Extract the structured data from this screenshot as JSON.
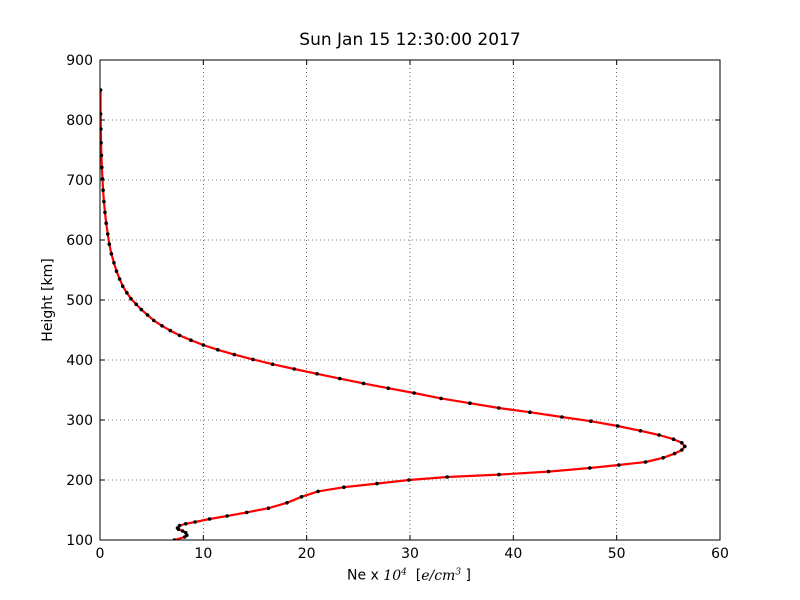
{
  "chart_data": {
    "type": "line",
    "title": "Sun Jan 15 12:30:00 2017",
    "xlabel": "Ne x",
    "xlabel_math": "10",
    "xlabel_exp": "4",
    "xlabel_unit_open": "[",
    "xlabel_unit": "e/cm",
    "xlabel_unit_exp": "3",
    "xlabel_unit_close": "]",
    "ylabel": "Height [km]",
    "xlim": [
      0,
      60
    ],
    "ylim": [
      100,
      900
    ],
    "xticks": [
      0,
      10,
      20,
      30,
      40,
      50,
      60
    ],
    "yticks": [
      100,
      200,
      300,
      400,
      500,
      600,
      700,
      800,
      900
    ],
    "grid": true,
    "line_color": "#ff0000",
    "marker_color": "#000000",
    "series": [
      {
        "x": [
          7.2,
          8.2,
          8.4,
          8.3,
          8.0,
          7.6,
          7.5,
          7.7,
          8.3,
          9.2,
          10.6,
          12.3,
          14.2,
          16.3,
          18.1,
          19.5,
          21.1,
          23.6,
          26.8,
          29.9,
          33.6,
          38.6,
          43.4,
          47.4,
          50.2,
          52.8,
          54.5,
          55.6,
          56.3,
          56.6,
          56.3,
          55.5,
          54.1,
          52.3,
          50.1,
          47.5,
          44.7,
          41.6,
          38.6,
          35.8,
          33.0,
          30.4,
          27.9,
          25.5,
          23.2,
          21.0,
          18.8,
          16.7,
          14.8,
          13.0,
          11.4,
          10.0,
          8.8,
          7.7,
          6.8,
          6.0,
          5.2,
          4.6,
          4.0,
          3.5,
          3.0,
          2.6,
          2.2,
          1.9,
          1.6,
          1.35,
          1.1,
          0.9,
          0.75,
          0.6,
          0.48,
          0.38,
          0.3,
          0.24,
          0.18,
          0.14,
          0.1,
          0.08,
          0.06,
          0.05
        ],
        "y": [
          100,
          105,
          108,
          112,
          115,
          118,
          120,
          124,
          127,
          130,
          135,
          140,
          146,
          153,
          162,
          172,
          181,
          188,
          194,
          200,
          205,
          209,
          214,
          220,
          225,
          230,
          237,
          244,
          250,
          256,
          262,
          268,
          275,
          282,
          290,
          298,
          305,
          313,
          320,
          328,
          336,
          345,
          353,
          361,
          369,
          377,
          385,
          393,
          401,
          409,
          417,
          425,
          433,
          441,
          449,
          457,
          466,
          475,
          484,
          493,
          502,
          512,
          523,
          535,
          548,
          562,
          577,
          593,
          610,
          628,
          646,
          664,
          683,
          702,
          721,
          741,
          762,
          785,
          810,
          850
        ]
      }
    ]
  }
}
